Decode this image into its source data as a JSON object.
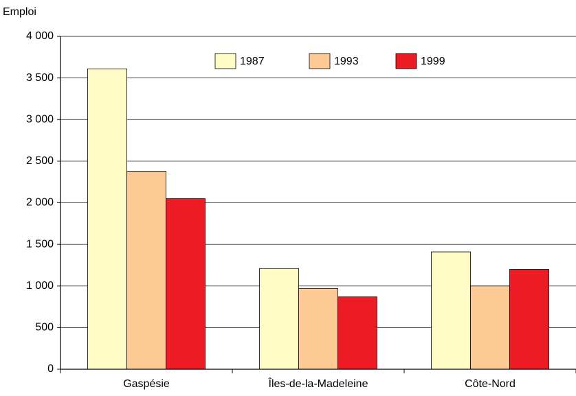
{
  "chart_data": {
    "type": "bar",
    "y_label": "Emploi",
    "categories": [
      "Gaspésie",
      "Îles-de-la-Madeleine",
      "Côte-Nord"
    ],
    "series": [
      {
        "name": "1987",
        "color": "#fffcc8",
        "values": [
          3610,
          1210,
          1410
        ]
      },
      {
        "name": "1993",
        "color": "#fdca96",
        "values": [
          2380,
          970,
          1000
        ]
      },
      {
        "name": "1999",
        "color": "#ed1c24",
        "values": [
          2050,
          870,
          1200
        ]
      }
    ],
    "ylim": [
      0,
      4000
    ],
    "yticks": [
      0,
      500,
      {
        "value": 1000,
        "label": "1 000"
      },
      {
        "value": 1500,
        "label": "1 500"
      },
      {
        "value": 2000,
        "label": "2 000"
      },
      {
        "value": 2500,
        "label": "2 500"
      },
      {
        "value": 3000,
        "label": "3 000"
      },
      {
        "value": 3500,
        "label": "3 500"
      },
      {
        "value": 4000,
        "label": "4 000"
      }
    ],
    "grid": true,
    "legend": "top"
  }
}
